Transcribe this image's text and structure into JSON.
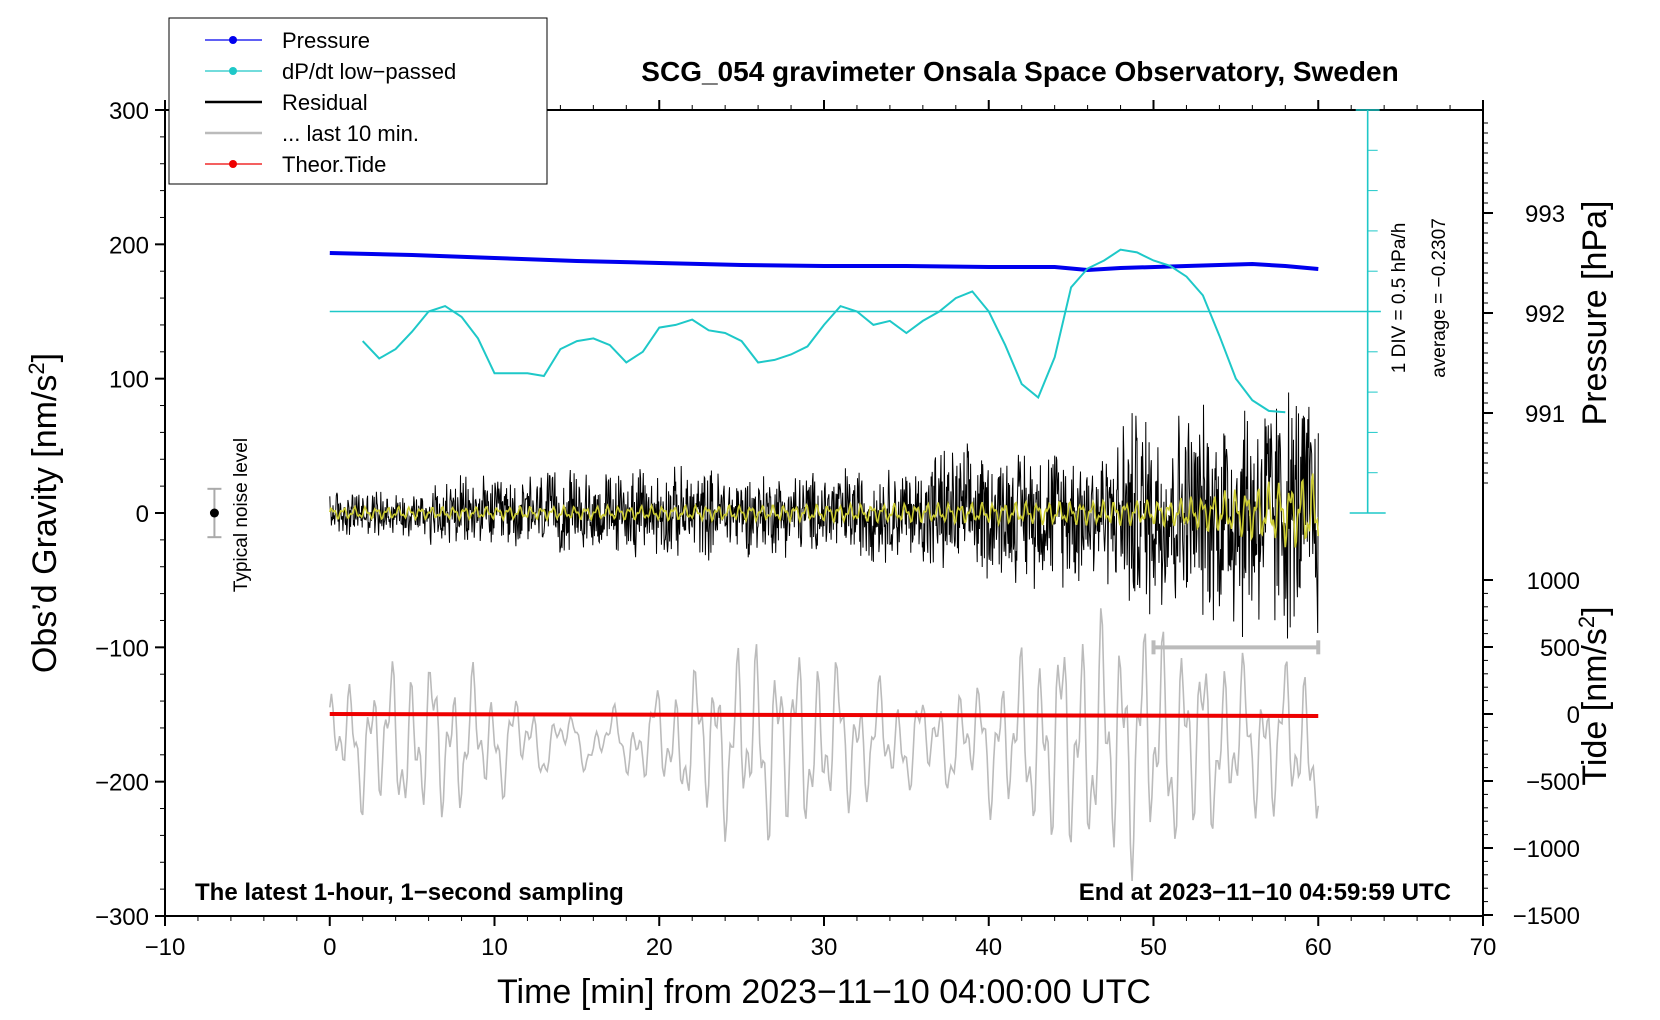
{
  "chart_data": {
    "type": "line",
    "title": "SCG_054 gravimeter Onsala Space Observatory, Sweden",
    "xlabel": "Time [min] from 2023−11−10 04:00:00 UTC",
    "ylabel_main": "Obs’d Gravity [nm/s",
    "ylabel_sup": "2",
    "ylabel_close": "]",
    "ylabel_pressure": "Pressure [hPa]",
    "ylabel_tide": "Tide [nm/s",
    "ylabel_tide_sup": "2",
    "ylabel_tide_close": "]",
    "xlim": [
      -10,
      70
    ],
    "ylim": [
      -300,
      300
    ],
    "x_ticks": [
      -10,
      0,
      10,
      20,
      30,
      40,
      50,
      60,
      70
    ],
    "x_tick_labels": [
      "−10",
      "0",
      "10",
      "20",
      "30",
      "40",
      "50",
      "60",
      "70"
    ],
    "y_ticks": [
      -300,
      -200,
      -100,
      0,
      100,
      200,
      300
    ],
    "y_tick_labels": [
      "−300",
      "−200",
      "−100",
      "0",
      "100",
      "200",
      "300"
    ],
    "pressure_ticks": [
      991,
      992,
      993
    ],
    "pressure_tick_labels": [
      "991",
      "992",
      "993"
    ],
    "tide_ticks": [
      -1500,
      -1000,
      -500,
      0,
      500,
      1000
    ],
    "tide_tick_labels": [
      "−1500",
      "−1000",
      "−500",
      "0",
      "500",
      "1000"
    ],
    "bottom_left_note": "The latest 1-hour, 1−second sampling",
    "bottom_right_note": "End at 2023−11−10 04:59:59 UTC",
    "noise_label": "Typical noise level",
    "noise_level": {
      "x": -7,
      "center": 0,
      "half_range": 18
    },
    "ddt_scale_text": "1 DIV = 0.5 hPa/h",
    "ddt_average_text": "average = −0.2307",
    "last10_span": [
      50,
      60
    ],
    "legend": [
      {
        "label": "Pressure",
        "color": "#0000ee",
        "marker": true
      },
      {
        "label": "dP/dt low−passed",
        "color": "#1ec8c8",
        "marker": true
      },
      {
        "label": "Residual",
        "color": "#000000",
        "marker": false
      },
      {
        "label": "... last 10 min.",
        "color": "#bbbbbb",
        "marker": false
      },
      {
        "label": "Theor.Tide",
        "color": "#ee0000",
        "marker": true
      }
    ],
    "series": [
      {
        "name": "Pressure",
        "color": "#0000ee",
        "units": "hPa",
        "x": [
          0,
          5,
          10,
          15,
          20,
          25,
          30,
          35,
          40,
          44,
          46,
          48,
          52,
          56,
          58,
          60
        ],
        "values": [
          992.6,
          992.58,
          992.55,
          992.52,
          992.5,
          992.48,
          992.47,
          992.47,
          992.46,
          992.46,
          992.43,
          992.45,
          992.47,
          992.49,
          992.47,
          992.44
        ]
      },
      {
        "name": "dP/dt low−passed",
        "color": "#1ec8c8",
        "units": "nm/s2 display",
        "x": [
          2,
          3,
          4,
          5,
          6,
          7,
          8,
          9,
          10,
          11,
          12,
          13,
          14,
          15,
          16,
          17,
          18,
          19,
          20,
          21,
          22,
          23,
          24,
          25,
          26,
          27,
          28,
          29,
          30,
          31,
          32,
          33,
          34,
          35,
          36,
          37,
          38,
          39,
          40,
          41,
          42,
          43,
          44,
          45,
          46,
          47,
          48,
          49,
          50,
          51,
          52,
          53,
          54,
          55,
          56,
          57,
          58
        ],
        "values": [
          128,
          115,
          122,
          135,
          150,
          154,
          146,
          130,
          104,
          104,
          104,
          102,
          122,
          128,
          130,
          125,
          112,
          120,
          138,
          140,
          144,
          136,
          134,
          128,
          112,
          114,
          118,
          124,
          140,
          154,
          150,
          140,
          143,
          134,
          143,
          150,
          160,
          165,
          150,
          125,
          96,
          86,
          116,
          168,
          182,
          188,
          196,
          194,
          188,
          184,
          176,
          162,
          132,
          100,
          84,
          76,
          75
        ]
      },
      {
        "name": "Residual",
        "color": "#000000",
        "units": "nm/s2",
        "x_range": [
          0,
          60
        ],
        "amplitude_envelope": [
          20,
          30,
          35,
          38,
          35,
          40,
          55,
          60,
          90,
          110
        ]
      },
      {
        "name": "... last 10 min.",
        "color": "#bbbbbb",
        "units": "nm/s2 (shifted)",
        "x_range": [
          0,
          60
        ]
      },
      {
        "name": "Theor.Tide",
        "color": "#ee0000",
        "units": "nm/s2",
        "x": [
          0,
          60
        ],
        "values": [
          0,
          -15
        ]
      }
    ]
  }
}
